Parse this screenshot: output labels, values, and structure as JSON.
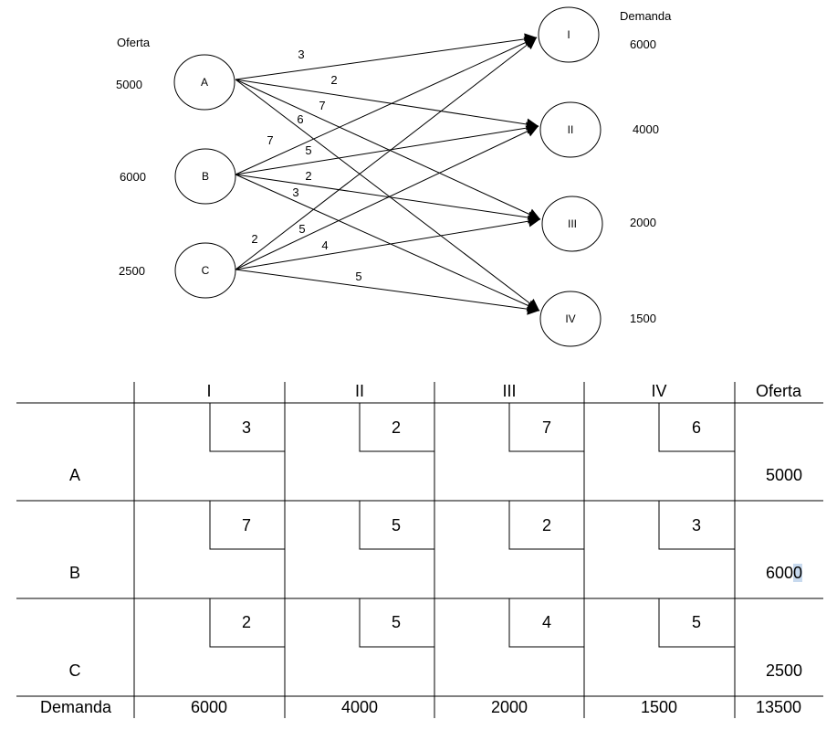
{
  "network": {
    "supply_title": "Oferta",
    "demand_title": "Demanda",
    "sources": [
      {
        "label": "A",
        "supply": "5000"
      },
      {
        "label": "B",
        "supply": "6000"
      },
      {
        "label": "C",
        "supply": "2500"
      }
    ],
    "destinations": [
      {
        "label": "I",
        "demand": "6000"
      },
      {
        "label": "II",
        "demand": "4000"
      },
      {
        "label": "III",
        "demand": "2000"
      },
      {
        "label": "IV",
        "demand": "1500"
      }
    ],
    "edges": [
      {
        "from": "A",
        "to": "I",
        "cost": "3"
      },
      {
        "from": "A",
        "to": "II",
        "cost": "2"
      },
      {
        "from": "A",
        "to": "III",
        "cost": "7"
      },
      {
        "from": "A",
        "to": "IV",
        "cost": "6"
      },
      {
        "from": "B",
        "to": "I",
        "cost": "7"
      },
      {
        "from": "B",
        "to": "II",
        "cost": "5"
      },
      {
        "from": "B",
        "to": "III",
        "cost": "2"
      },
      {
        "from": "B",
        "to": "IV",
        "cost": "3"
      },
      {
        "from": "C",
        "to": "I",
        "cost": "2"
      },
      {
        "from": "C",
        "to": "II",
        "cost": "5"
      },
      {
        "from": "C",
        "to": "III",
        "cost": "4"
      },
      {
        "from": "C",
        "to": "IV",
        "cost": "5"
      }
    ]
  },
  "table": {
    "headers": [
      "I",
      "II",
      "III",
      "IV",
      "Oferta"
    ],
    "rows": [
      {
        "label": "A",
        "costs": [
          "3",
          "2",
          "7",
          "6"
        ],
        "supply": "5000"
      },
      {
        "label": "B",
        "costs": [
          "7",
          "5",
          "2",
          "3"
        ],
        "supply_main": "600",
        "supply_last": "0"
      },
      {
        "label": "C",
        "costs": [
          "2",
          "5",
          "4",
          "5"
        ],
        "supply": "2500"
      }
    ],
    "footer": {
      "label": "Demanda",
      "values": [
        "6000",
        "4000",
        "2000",
        "1500"
      ],
      "total": "13500"
    }
  }
}
